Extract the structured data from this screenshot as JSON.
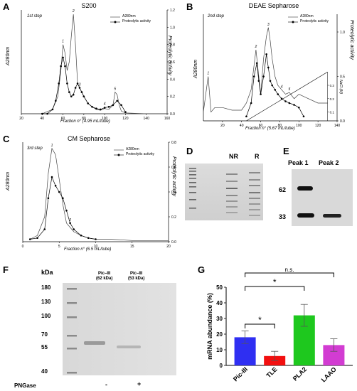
{
  "panels": {
    "A": {
      "letter": "A",
      "title": "S200",
      "step": "1st step",
      "xlabel": "Fraction n° (4.95 mL/tube)",
      "ylabel_left": "A280nm",
      "ylabel_right": "Proteolytic activity",
      "legend": [
        "A280nm",
        "Proteolytic activity"
      ],
      "peak_labels": [
        "1",
        "2",
        "3",
        "4",
        "5"
      ]
    },
    "B": {
      "letter": "B",
      "title": "DEAE Sepharose",
      "step": "2nd step",
      "xlabel": "Fraction n° (5.67 mL/tube)",
      "ylabel_left": "A280nm",
      "ylabel_right": "Proteolytic activity",
      "ylabel_nacl": "NaCl (M)",
      "legend": [
        "A280nm",
        "Proteolytic activity"
      ],
      "peak_labels": [
        "1",
        "2",
        "3",
        "4",
        "5"
      ]
    },
    "C": {
      "letter": "C",
      "title": "CM Sepharose",
      "step": "3rd step",
      "xlabel": "Fraction n° (6.5 mL/tube)",
      "ylabel_left": "A280nm",
      "ylabel_right": "Proteolytic activity",
      "legend": [
        "A280nm",
        "Proteolytic activity"
      ],
      "peak_labels": [
        "1",
        "2"
      ]
    },
    "D": {
      "letter": "D",
      "lanes": [
        "NR",
        "R"
      ]
    },
    "E": {
      "letter": "E",
      "lanes": [
        "Peak 1",
        "Peak 2"
      ],
      "markers": [
        "62",
        "33"
      ]
    },
    "F": {
      "letter": "F",
      "unit": "kDa",
      "markers": [
        "180",
        "130",
        "100",
        "70",
        "55",
        "40"
      ],
      "lanes": [
        "Pic–III\n(62 kDa)",
        "Pic–III\n(53 kDa)"
      ],
      "lane1_top": "Pic–III",
      "lane1_bottom": "(62 kDa)",
      "lane2_top": "Pic–III",
      "lane2_bottom": "(53 kDa)",
      "pngase_label": "PNGase",
      "pngase_values": [
        "-",
        "+"
      ]
    },
    "G": {
      "letter": "G",
      "sig": [
        "n.s.",
        "*",
        "*"
      ]
    }
  },
  "chart_data": [
    {
      "type": "line",
      "panel": "A",
      "title": "S200",
      "xlabel": "Fraction n° (4.95 mL/tube)",
      "ylabel": "A280nm",
      "y2label": "Proteolytic activity",
      "xlim": [
        20,
        160
      ],
      "xticks": [
        20,
        40,
        60,
        80,
        100,
        120,
        140,
        160
      ],
      "y2lim": [
        0,
        1.2
      ],
      "y2ticks": [
        0.0,
        0.2,
        0.4,
        0.6,
        0.8,
        1.0,
        1.2
      ],
      "series": [
        {
          "name": "A280nm",
          "x": [
            20,
            40,
            50,
            55,
            58,
            60,
            62,
            64,
            66,
            68,
            70,
            72,
            74,
            76,
            78,
            80,
            84,
            88,
            92,
            96,
            100,
            104,
            108,
            110,
            112,
            114,
            116,
            120,
            140,
            160
          ],
          "y": [
            0,
            0,
            0.05,
            0.2,
            0.5,
            0.8,
            0.7,
            0.5,
            0.6,
            0.9,
            1.15,
            0.8,
            0.35,
            0.3,
            0.25,
            0.2,
            0.12,
            0.08,
            0.05,
            0.04,
            0.06,
            0.05,
            0.1,
            0.25,
            0.22,
            0.1,
            0.03,
            0.01,
            0,
            0
          ]
        },
        {
          "name": "Proteolytic activity",
          "x": [
            40,
            45,
            50,
            53,
            56,
            58,
            60,
            62,
            64,
            66,
            68,
            70,
            72,
            74,
            76,
            78,
            80,
            84,
            88,
            92,
            96,
            100,
            104,
            108,
            112,
            116,
            120
          ],
          "y": [
            0,
            0,
            0.05,
            0.15,
            0.35,
            0.55,
            0.65,
            0.55,
            0.35,
            0.25,
            0.2,
            0.22,
            0.3,
            0.35,
            0.3,
            0.25,
            0.2,
            0.12,
            0.08,
            0.06,
            0.05,
            0.07,
            0.08,
            0.1,
            0.15,
            0.1,
            0.02
          ]
        }
      ]
    },
    {
      "type": "line",
      "panel": "B",
      "title": "DEAE Sepharose",
      "xlabel": "Fraction n° (5.67 mL/tube)",
      "ylabel": "A280nm",
      "y2label": "Proteolytic activity",
      "xlim": [
        0,
        140
      ],
      "xticks": [
        20,
        40,
        60,
        80,
        100,
        120,
        140
      ],
      "y2lim": [
        0,
        1.2
      ],
      "y2ticks": [
        0.0,
        0.5,
        1.0
      ],
      "naclticks": [
        0.1,
        0.2,
        0.3
      ],
      "series": [
        {
          "name": "A280nm",
          "x": [
            0,
            5,
            8,
            12,
            20,
            30,
            40,
            45,
            50,
            55,
            58,
            60,
            63,
            66,
            68,
            70,
            72,
            75,
            78,
            82,
            86,
            90,
            95,
            100,
            110,
            120,
            130
          ],
          "y": [
            0.1,
            0.5,
            0.1,
            0.15,
            0.15,
            0.12,
            0.12,
            0.2,
            0.35,
            0.8,
            0.5,
            0.3,
            0.7,
            0.95,
            1.05,
            0.9,
            0.7,
            0.5,
            0.4,
            0.35,
            0.3,
            0.32,
            0.25,
            0.3,
            0.25,
            0.2,
            0.2
          ]
        },
        {
          "name": "Proteolytic activity",
          "x": [
            45,
            50,
            53,
            56,
            58,
            60,
            63,
            66,
            68,
            70,
            72,
            75,
            78,
            82,
            86,
            90,
            95,
            100,
            105
          ],
          "y": [
            0.05,
            0.2,
            0.5,
            0.65,
            0.45,
            0.3,
            0.5,
            0.75,
            0.6,
            0.45,
            0.4,
            0.35,
            0.3,
            0.25,
            0.22,
            0.2,
            0.18,
            0.15,
            0.05
          ]
        }
      ]
    },
    {
      "type": "line",
      "panel": "C",
      "title": "CM Sepharose",
      "xlabel": "Fraction n° (6.5 mL/tube)",
      "ylabel": "A280nm",
      "y2label": "Proteolytic activity",
      "xlim": [
        0,
        20
      ],
      "xticks": [
        0,
        5,
        10,
        15,
        20
      ],
      "y2lim": [
        0,
        0.8
      ],
      "y2ticks": [
        0.0,
        0.2,
        0.4,
        0.6,
        0.8
      ],
      "series": [
        {
          "name": "A280nm",
          "x": [
            1,
            2,
            3,
            3.5,
            4,
            4.5,
            5,
            5.5,
            6,
            7,
            8,
            9,
            10,
            12,
            15,
            18,
            20
          ],
          "y": [
            0.02,
            0.05,
            0.2,
            0.55,
            0.75,
            0.7,
            0.5,
            0.3,
            0.15,
            0.08,
            0.05,
            0.03,
            0.02,
            0.02,
            0.01,
            0.01,
            0.01
          ]
        },
        {
          "name": "Proteolytic activity",
          "x": [
            1,
            2,
            3,
            3.5,
            4,
            4.5,
            5,
            5.5,
            6,
            6.5,
            7,
            8,
            9,
            10
          ],
          "y": [
            0.02,
            0.03,
            0.1,
            0.35,
            0.52,
            0.45,
            0.4,
            0.35,
            0.25,
            0.15,
            0.1,
            0.05,
            0.03,
            0.02
          ]
        }
      ]
    },
    {
      "type": "bar",
      "panel": "G",
      "categories": [
        "Pic-III",
        "TLE",
        "PLA2",
        "LAAO"
      ],
      "values": [
        18,
        6,
        32,
        13
      ],
      "errors": [
        4,
        3,
        7,
        4
      ],
      "colors": [
        "#2f2ff2",
        "#f20f0f",
        "#1ec81e",
        "#d23cd2"
      ],
      "ylabel": "mRNA abundance (%)",
      "ylim": [
        0,
        50
      ],
      "yticks": [
        0,
        10,
        20,
        30,
        40,
        50
      ]
    }
  ]
}
